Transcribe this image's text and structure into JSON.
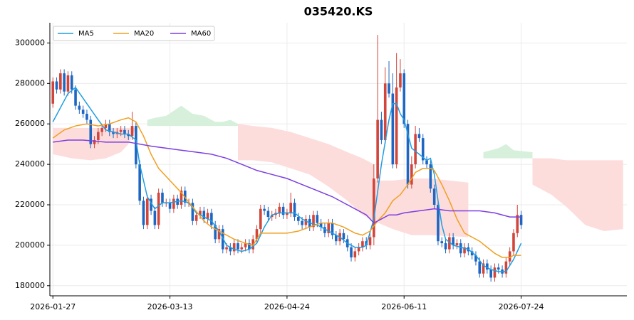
{
  "chart_data": {
    "type": "candlestick",
    "title": "035420.KS",
    "xlim": [
      -0.8,
      152
    ],
    "ylim": [
      175000,
      310000
    ],
    "xticks": [
      {
        "value": 0,
        "label": "2026-01-27"
      },
      {
        "value": 31,
        "label": "2026-03-13"
      },
      {
        "value": 62,
        "label": "2026-04-24"
      },
      {
        "value": 93,
        "label": "2026-06-11"
      },
      {
        "value": 124,
        "label": "2026-07-24"
      }
    ],
    "yticks": [
      180000,
      200000,
      220000,
      240000,
      260000,
      280000,
      300000
    ],
    "grid": true,
    "legend": "upper left",
    "up_color": "#d1453b",
    "down_color": "#1f66c2",
    "candles": {
      "x": [
        0,
        1,
        2,
        3,
        4,
        5,
        6,
        7,
        8,
        9,
        10,
        11,
        12,
        13,
        14,
        15,
        16,
        17,
        18,
        19,
        20,
        21,
        22,
        23,
        24,
        25,
        26,
        27,
        28,
        29,
        30,
        31,
        32,
        33,
        34,
        35,
        36,
        37,
        38,
        39,
        40,
        41,
        42,
        43,
        44,
        45,
        46,
        47,
        48,
        49,
        50,
        51,
        52,
        53,
        54,
        55,
        56,
        57,
        58,
        59,
        60,
        61,
        62,
        63,
        64,
        65,
        66,
        67,
        68,
        69,
        70,
        71,
        72,
        73,
        74,
        75,
        76,
        77,
        78,
        79,
        80,
        81,
        82,
        83,
        84,
        85,
        86,
        87,
        88,
        89,
        90,
        91,
        92,
        93,
        94,
        95,
        96,
        97,
        98,
        99,
        100,
        101,
        102,
        103,
        104,
        105,
        106,
        107,
        108,
        109,
        110,
        111,
        112,
        113,
        114,
        115,
        116,
        117,
        118,
        119,
        120,
        121,
        122,
        123,
        124
      ],
      "open": [
        270000,
        281000,
        277000,
        285000,
        276000,
        284000,
        277000,
        269000,
        267000,
        265000,
        262000,
        250000,
        252000,
        256000,
        258000,
        260000,
        256000,
        255000,
        256000,
        257000,
        255000,
        254000,
        259000,
        240000,
        222000,
        210000,
        223000,
        217000,
        210000,
        226000,
        221000,
        221000,
        218000,
        223000,
        220000,
        227000,
        221000,
        221000,
        212000,
        215000,
        217000,
        213000,
        216000,
        210000,
        203000,
        208000,
        198000,
        199000,
        197000,
        201000,
        198000,
        199000,
        201000,
        198000,
        203000,
        208000,
        218000,
        217000,
        214000,
        215000,
        216000,
        219000,
        215000,
        216000,
        221000,
        214000,
        212000,
        210000,
        213000,
        209000,
        215000,
        211000,
        209000,
        206000,
        211000,
        205000,
        202000,
        206000,
        203000,
        199000,
        194000,
        197000,
        199000,
        202000,
        200000,
        204000,
        233000,
        262000,
        252000,
        280000,
        275000,
        240000,
        278000,
        285000,
        260000,
        230000,
        240000,
        255000,
        253000,
        242000,
        240000,
        228000,
        220000,
        202000,
        201000,
        198000,
        204000,
        200000,
        201000,
        196000,
        199000,
        197000,
        195000,
        192000,
        186000,
        191000,
        188000,
        184000,
        189000,
        188000,
        186000,
        192000,
        197000,
        206000,
        215000
      ],
      "high": [
        283000,
        283000,
        287000,
        287000,
        286000,
        286000,
        279000,
        271000,
        269000,
        267000,
        264000,
        254000,
        258000,
        260000,
        262000,
        262000,
        258000,
        258000,
        259000,
        259000,
        257000,
        266000,
        261000,
        242000,
        224000,
        225000,
        225000,
        219000,
        228000,
        228000,
        223000,
        223000,
        225000,
        225000,
        229000,
        229000,
        223000,
        223000,
        217000,
        219000,
        219000,
        218000,
        218000,
        212000,
        210000,
        210000,
        201000,
        201000,
        203000,
        203000,
        201000,
        203000,
        203000,
        205000,
        210000,
        220000,
        220000,
        219000,
        217000,
        218000,
        221000,
        221000,
        218000,
        226000,
        223000,
        216000,
        214000,
        215000,
        215000,
        217000,
        217000,
        213000,
        211000,
        213000,
        213000,
        207000,
        208000,
        208000,
        205000,
        201000,
        199000,
        201000,
        204000,
        204000,
        206000,
        240000,
        304000,
        266000,
        288000,
        291000,
        285000,
        295000,
        292000,
        287000,
        262000,
        244000,
        259000,
        258000,
        255000,
        244000,
        242000,
        230000,
        222000,
        204000,
        203000,
        206000,
        206000,
        203000,
        203000,
        201000,
        201000,
        199000,
        197000,
        194000,
        193000,
        193000,
        190000,
        191000,
        191000,
        190000,
        194000,
        199000,
        208000,
        220000,
        217000
      ],
      "low": [
        268000,
        275000,
        275000,
        274000,
        274000,
        275000,
        267000,
        265000,
        263000,
        260000,
        248000,
        248000,
        250000,
        254000,
        256000,
        254000,
        253000,
        253000,
        254000,
        253000,
        252000,
        252000,
        238000,
        220000,
        208000,
        208000,
        215000,
        208000,
        208000,
        219000,
        219000,
        216000,
        216000,
        218000,
        218000,
        219000,
        219000,
        210000,
        210000,
        213000,
        211000,
        211000,
        208000,
        201000,
        201000,
        196000,
        196000,
        195000,
        195000,
        196000,
        196000,
        197000,
        196000,
        196000,
        201000,
        206000,
        215000,
        212000,
        212000,
        213000,
        214000,
        213000,
        213000,
        214000,
        212000,
        210000,
        208000,
        208000,
        207000,
        207000,
        209000,
        207000,
        204000,
        204000,
        203000,
        200000,
        200000,
        201000,
        197000,
        192000,
        192000,
        195000,
        197000,
        198000,
        198000,
        200000,
        231000,
        250000,
        250000,
        273000,
        238000,
        238000,
        276000,
        258000,
        228000,
        228000,
        238000,
        251000,
        240000,
        238000,
        226000,
        218000,
        200000,
        199000,
        196000,
        196000,
        198000,
        198000,
        194000,
        194000,
        195000,
        193000,
        190000,
        184000,
        184000,
        186000,
        182000,
        182000,
        186000,
        184000,
        184000,
        190000,
        195000,
        204000,
        208000
      ],
      "close": [
        281000,
        277000,
        285000,
        276000,
        284000,
        277000,
        269000,
        267000,
        265000,
        262000,
        250000,
        252000,
        256000,
        258000,
        260000,
        256000,
        255000,
        256000,
        257000,
        255000,
        254000,
        259000,
        240000,
        222000,
        210000,
        223000,
        217000,
        210000,
        226000,
        221000,
        221000,
        218000,
        223000,
        220000,
        227000,
        221000,
        221000,
        212000,
        215000,
        217000,
        213000,
        216000,
        210000,
        203000,
        208000,
        198000,
        199000,
        197000,
        201000,
        198000,
        199000,
        201000,
        198000,
        203000,
        208000,
        218000,
        217000,
        214000,
        215000,
        216000,
        219000,
        215000,
        216000,
        221000,
        214000,
        212000,
        210000,
        213000,
        209000,
        215000,
        211000,
        209000,
        206000,
        211000,
        205000,
        202000,
        206000,
        203000,
        199000,
        194000,
        197000,
        199000,
        202000,
        200000,
        204000,
        233000,
        262000,
        252000,
        280000,
        275000,
        240000,
        278000,
        285000,
        260000,
        230000,
        240000,
        255000,
        253000,
        242000,
        240000,
        228000,
        220000,
        202000,
        201000,
        198000,
        204000,
        200000,
        201000,
        196000,
        199000,
        197000,
        195000,
        192000,
        186000,
        191000,
        188000,
        184000,
        189000,
        188000,
        186000,
        192000,
        197000,
        206000,
        215000,
        210000
      ]
    },
    "cloud": [
      {
        "color": "#fddcdc",
        "x": [
          0,
          5,
          10,
          14,
          18,
          20,
          22
        ],
        "upper": [
          258000,
          258000,
          258000,
          258000,
          258000,
          258000,
          258000
        ],
        "lower": [
          245000,
          243000,
          242000,
          243000,
          246000,
          250000,
          258000
        ]
      },
      {
        "color": "#d7f0dc",
        "x": [
          25,
          27,
          30,
          34,
          37,
          40,
          43,
          45,
          47,
          49
        ],
        "upper": [
          262000,
          263000,
          264000,
          269000,
          265000,
          264000,
          261000,
          261000,
          262000,
          260000
        ],
        "lower": [
          259000,
          259000,
          259000,
          259000,
          259000,
          259000,
          259000,
          259000,
          259000,
          259000
        ]
      },
      {
        "color": "#fddcdc",
        "x": [
          49,
          53,
          58,
          63,
          68,
          73,
          78,
          82,
          85
        ],
        "upper": [
          260000,
          259000,
          258000,
          256000,
          253000,
          250000,
          246000,
          243000,
          240000
        ],
        "lower": [
          242000,
          242000,
          241000,
          238000,
          235000,
          229000,
          222000,
          215000,
          212000
        ]
      },
      {
        "color": "#fddcdc",
        "x": [
          85,
          90,
          95,
          100,
          110
        ],
        "upper": [
          232000,
          232000,
          233000,
          233000,
          231000
        ],
        "lower": [
          212000,
          208000,
          205000,
          205000,
          204000
        ]
      },
      {
        "color": "#d7f0dc",
        "x": [
          114,
          118,
          120,
          122,
          127
        ],
        "upper": [
          246000,
          248000,
          250000,
          247000,
          246000
        ],
        "lower": [
          243000,
          243000,
          243000,
          243000,
          243000
        ]
      },
      {
        "color": "#fddcdc",
        "x": [
          127,
          132,
          136,
          141,
          146,
          151
        ],
        "upper": [
          243000,
          243000,
          242000,
          242000,
          242000,
          242000
        ],
        "lower": [
          230000,
          225000,
          219000,
          210000,
          207000,
          208000
        ]
      }
    ],
    "series": [
      {
        "name": "MA5",
        "color": "#1f9ee0",
        "x": [
          0,
          4,
          6,
          9,
          12,
          14,
          18,
          20,
          22,
          23,
          24,
          25,
          27,
          29,
          31,
          34,
          36,
          38,
          40,
          42,
          44,
          46,
          48,
          50,
          52,
          54,
          56,
          58,
          60,
          62,
          64,
          66,
          68,
          70,
          72,
          74,
          76,
          78,
          80,
          82,
          83,
          85,
          87,
          89,
          90,
          91,
          92,
          93,
          95,
          97,
          99,
          100,
          101,
          102,
          103,
          104,
          106,
          108,
          110,
          112,
          114,
          116,
          118,
          120,
          122,
          124
        ],
        "values": [
          261000,
          275000,
          278000,
          270000,
          262000,
          257000,
          255000,
          255000,
          252000,
          240000,
          232000,
          224000,
          218000,
          221000,
          221000,
          222000,
          221000,
          216000,
          214000,
          212000,
          207000,
          200000,
          198000,
          197000,
          198000,
          201000,
          209000,
          215000,
          216000,
          216000,
          216000,
          213000,
          211000,
          210000,
          208000,
          206000,
          204000,
          201000,
          199000,
          199000,
          200000,
          213000,
          240000,
          262000,
          270000,
          270000,
          265000,
          262000,
          248000,
          245000,
          242000,
          243000,
          235000,
          222000,
          210000,
          203000,
          200000,
          199000,
          198000,
          195000,
          190000,
          188000,
          187000,
          187000,
          193000,
          201000
        ]
      },
      {
        "name": "MA20",
        "color": "#f0a020",
        "x": [
          0,
          3,
          6,
          9,
          12,
          15,
          18,
          20,
          22,
          24,
          26,
          28,
          31,
          34,
          37,
          40,
          42,
          45,
          48,
          51,
          53,
          55,
          58,
          62,
          65,
          68,
          71,
          74,
          77,
          80,
          82,
          84,
          86,
          88,
          90,
          92,
          94,
          96,
          98,
          100,
          101,
          103,
          105,
          107,
          109,
          111,
          113,
          115,
          117,
          119,
          121,
          122,
          124
        ],
        "values": [
          253000,
          257000,
          259000,
          260000,
          259000,
          260000,
          262000,
          263000,
          261000,
          254000,
          245000,
          238000,
          232000,
          226000,
          219000,
          212000,
          209000,
          206000,
          203000,
          201000,
          200000,
          206000,
          206000,
          206000,
          207000,
          209000,
          211000,
          211000,
          209000,
          206000,
          205000,
          207000,
          212000,
          216000,
          222000,
          225000,
          230000,
          236000,
          238000,
          238000,
          237000,
          230000,
          222000,
          213000,
          206000,
          204000,
          202000,
          199000,
          196000,
          194000,
          194000,
          195000,
          195000
        ]
      },
      {
        "name": "MA60",
        "color": "#7b3fe0",
        "x": [
          0,
          4,
          8,
          14,
          20,
          26,
          30,
          34,
          38,
          42,
          46,
          50,
          54,
          58,
          62,
          66,
          70,
          74,
          78,
          81,
          83,
          85,
          87,
          89,
          91,
          93,
          97,
          101,
          105,
          109,
          113,
          117,
          119,
          121,
          124
        ],
        "values": [
          251000,
          252000,
          252000,
          251000,
          251000,
          249000,
          248000,
          247000,
          246000,
          245000,
          243000,
          240000,
          237000,
          235000,
          233000,
          230000,
          227000,
          224000,
          220000,
          217000,
          215000,
          211000,
          213000,
          215000,
          215000,
          216000,
          217000,
          218000,
          217000,
          217000,
          217000,
          216000,
          215000,
          214000,
          214000
        ]
      }
    ]
  }
}
